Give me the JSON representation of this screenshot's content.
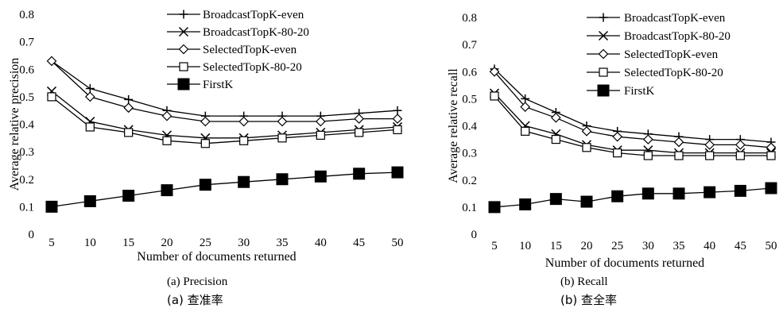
{
  "chart_data": [
    {
      "type": "line",
      "x": [
        5,
        10,
        15,
        20,
        25,
        30,
        35,
        40,
        45,
        50
      ],
      "xlabel": "Number of documents returned",
      "ylabel": "Average relative precision",
      "ylim": [
        0,
        0.8
      ],
      "yticks": [
        "0",
        "0.1",
        "0.2",
        "0.3",
        "0.4",
        "0.5",
        "0.6",
        "0.7",
        "0.8"
      ],
      "legend_position": "top-right",
      "caption": "(a)   Precision",
      "caption_cn": "(a)   查准率",
      "series": [
        {
          "name": "BroadcastTopK-even",
          "marker": "plus",
          "values": [
            0.63,
            0.53,
            0.49,
            0.45,
            0.43,
            0.43,
            0.43,
            0.43,
            0.44,
            0.45
          ]
        },
        {
          "name": "BroadcastTopK-80-20",
          "marker": "x",
          "values": [
            0.52,
            0.41,
            0.38,
            0.36,
            0.35,
            0.35,
            0.36,
            0.37,
            0.38,
            0.39
          ]
        },
        {
          "name": "SelectedTopK-even",
          "marker": "diamond",
          "values": [
            0.63,
            0.5,
            0.46,
            0.43,
            0.41,
            0.41,
            0.41,
            0.41,
            0.42,
            0.42
          ]
        },
        {
          "name": "SelectedTopK-80-20",
          "marker": "square-open",
          "values": [
            0.5,
            0.39,
            0.37,
            0.34,
            0.33,
            0.34,
            0.35,
            0.36,
            0.37,
            0.38
          ]
        },
        {
          "name": "FirstK",
          "marker": "square-filled",
          "values": [
            0.1,
            0.12,
            0.14,
            0.16,
            0.18,
            0.19,
            0.2,
            0.21,
            0.22,
            0.225
          ]
        }
      ]
    },
    {
      "type": "line",
      "x": [
        5,
        10,
        15,
        20,
        25,
        30,
        35,
        40,
        45,
        50
      ],
      "xlabel": "Number of documents returned",
      "ylabel": "Average relative recall",
      "ylim": [
        0,
        0.8
      ],
      "yticks": [
        "0",
        "0.1",
        "0.2",
        "0.3",
        "0.4",
        "0.5",
        "0.6",
        "0.7",
        "0.8"
      ],
      "legend_position": "top-right",
      "caption": "(b)   Recall",
      "caption_cn": "(b)   查全率",
      "series": [
        {
          "name": "BroadcastTopK-even",
          "marker": "plus",
          "values": [
            0.61,
            0.5,
            0.45,
            0.4,
            0.38,
            0.37,
            0.36,
            0.35,
            0.35,
            0.34
          ]
        },
        {
          "name": "BroadcastTopK-80-20",
          "marker": "x",
          "values": [
            0.52,
            0.4,
            0.37,
            0.33,
            0.31,
            0.31,
            0.3,
            0.3,
            0.3,
            0.3
          ]
        },
        {
          "name": "SelectedTopK-even",
          "marker": "diamond",
          "values": [
            0.6,
            0.47,
            0.43,
            0.38,
            0.36,
            0.35,
            0.34,
            0.33,
            0.33,
            0.32
          ]
        },
        {
          "name": "SelectedTopK-80-20",
          "marker": "square-open",
          "values": [
            0.51,
            0.38,
            0.35,
            0.32,
            0.3,
            0.29,
            0.29,
            0.29,
            0.29,
            0.29
          ]
        },
        {
          "name": "FirstK",
          "marker": "square-filled",
          "values": [
            0.1,
            0.11,
            0.13,
            0.12,
            0.14,
            0.15,
            0.15,
            0.155,
            0.16,
            0.17
          ]
        }
      ]
    }
  ]
}
